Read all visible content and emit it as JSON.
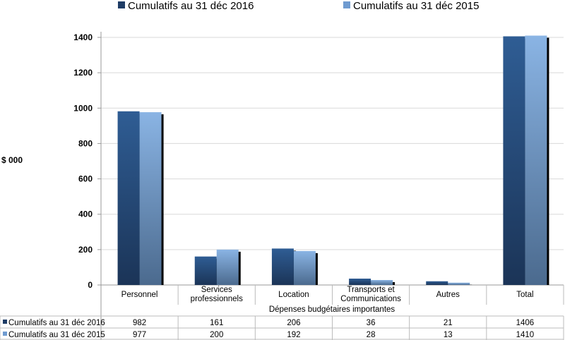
{
  "chart_data": {
    "type": "bar",
    "title": "",
    "ylabel": "$ 000",
    "xlabel": "Dépenses budgétaires importantes",
    "ylim": [
      0,
      1400
    ],
    "yticks": [
      0,
      200,
      400,
      600,
      800,
      1000,
      1200,
      1400
    ],
    "grid": true,
    "legend_position": "top",
    "categories": [
      "Personnel",
      "Services professionnels",
      "Location",
      "Transports et Communications",
      "Autres",
      "Total"
    ],
    "category_lines": [
      [
        "Personnel"
      ],
      [
        "Services",
        "professionnels"
      ],
      [
        "Location"
      ],
      [
        "Transports et",
        "Communications"
      ],
      [
        "Autres"
      ],
      [
        "Total"
      ]
    ],
    "series": [
      {
        "name": "Cumulatifs au 31 déc 2016",
        "values": [
          982,
          161,
          206,
          36,
          21,
          1406
        ],
        "color_top": "#2f5d94",
        "color_bottom": "#1b3457"
      },
      {
        "name": "Cumulatifs au 31 déc 2015",
        "values": [
          977,
          200,
          192,
          28,
          13,
          1410
        ],
        "color_top": "#8ab4e4",
        "color_bottom": "#4b6a8e"
      }
    ],
    "data_table": true
  }
}
